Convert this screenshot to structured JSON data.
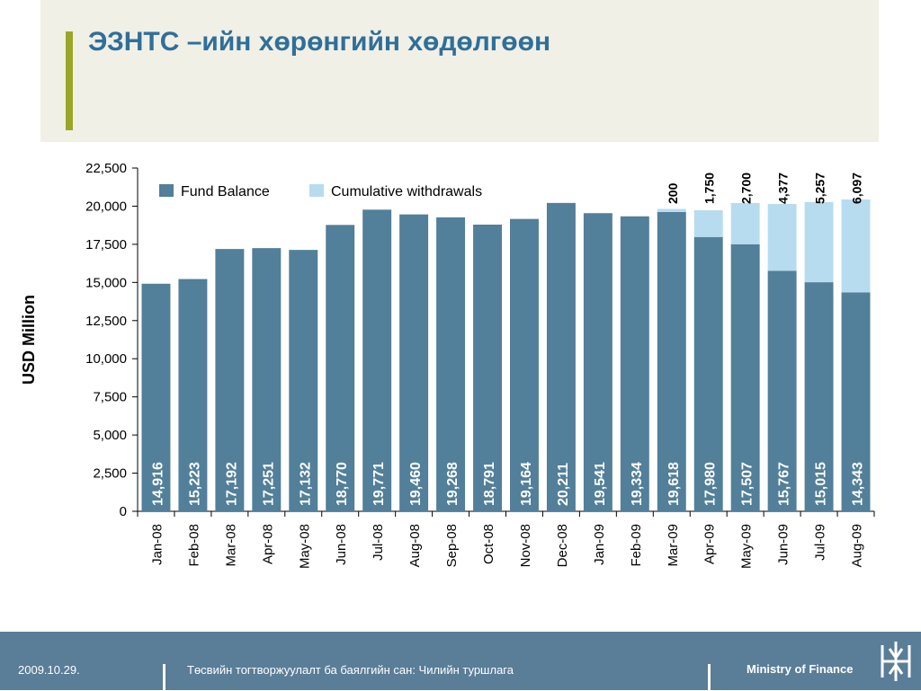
{
  "slide": {
    "title": "ЭЗНТС –ийн хөрөнгийн хөдөлгөөн"
  },
  "footer": {
    "date": "2009.10.29.",
    "center_text": "Төсвийн тогтворжуулалт ба баялгийн сан: Чилийн туршлага",
    "right_text": "Ministry of Finance",
    "logo_icon": "ministry-logo-icon"
  },
  "colors": {
    "fund_balance": "#527f99",
    "cumulative_withdrawals": "#b8dcef",
    "title": "#2f6f9a",
    "accent": "#9aa628",
    "footer": "#5a7d98"
  },
  "chart_data": {
    "type": "bar",
    "stacked": true,
    "ylabel": "USD Million",
    "ylim": [
      0,
      22500
    ],
    "yticks": [
      "0",
      "2,500",
      "5,000",
      "7,500",
      "10,000",
      "12,500",
      "15,000",
      "17,500",
      "20,000",
      "22,500"
    ],
    "legend_position": "top-left",
    "categories": [
      "Jan-08",
      "Feb-08",
      "Mar-08",
      "Apr-08",
      "May-08",
      "Jun-08",
      "Jul-08",
      "Aug-08",
      "Sep-08",
      "Oct-08",
      "Nov-08",
      "Dec-08",
      "Jan-09",
      "Feb-09",
      "Mar-09",
      "Apr-09",
      "May-09",
      "Jun-09",
      "Jul-09",
      "Aug-09"
    ],
    "series": [
      {
        "name": "Fund Balance",
        "values": [
          14916,
          15223,
          17192,
          17251,
          17132,
          18770,
          19771,
          19460,
          19268,
          18791,
          19164,
          20211,
          19541,
          19334,
          19618,
          17980,
          17507,
          15767,
          15015,
          14343
        ],
        "labels": [
          "14,916",
          "15,223",
          "17,192",
          "17,251",
          "17,132",
          "18,770",
          "19,771",
          "19,460",
          "19,268",
          "18,791",
          "19,164",
          "20,211",
          "19,541",
          "19,334",
          "19,618",
          "17,980",
          "17,507",
          "15,767",
          "15,015",
          "14,343"
        ]
      },
      {
        "name": "Cumulative withdrawals",
        "values": [
          0,
          0,
          0,
          0,
          0,
          0,
          0,
          0,
          0,
          0,
          0,
          0,
          0,
          0,
          200,
          1750,
          2700,
          4377,
          5257,
          6097
        ],
        "labels": [
          "",
          "",
          "",
          "",
          "",
          "",
          "",
          "",
          "",
          "",
          "",
          "",
          "",
          "",
          "200",
          "1,750",
          "2,700",
          "4,377",
          "5,257",
          "6,097"
        ]
      }
    ]
  }
}
